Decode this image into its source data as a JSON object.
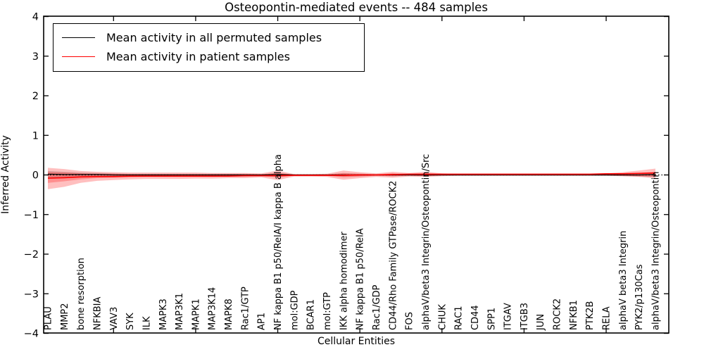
{
  "figure": {
    "title": "Osteopontin-mediated events -- 484 samples",
    "xlabel": "Cellular Entities",
    "ylabel": "Inferred Activity",
    "legend": [
      {
        "label": "Mean activity in all permuted samples",
        "color": "#000000"
      },
      {
        "label": "Mean activity in patient samples",
        "color": "#ff0000"
      }
    ]
  },
  "chart_data": {
    "type": "line",
    "title": "Osteopontin-mediated events -- 484 samples",
    "xlabel": "Cellular Entities",
    "ylabel": "Inferred Activity",
    "ylim": [
      -4,
      4
    ],
    "yticks": [
      -4,
      -3,
      -2,
      -1,
      0,
      1,
      2,
      3,
      4
    ],
    "xtick_category_indices": [
      4,
      9,
      14,
      19,
      24,
      29,
      34
    ],
    "grid": false,
    "legend_position": "upper left",
    "zero_line_style": "dotted",
    "categories": [
      "PLAU",
      "MMP2",
      "bone resorption",
      "NFKBIA",
      "VAV3",
      "SYK",
      "ILK",
      "MAPK3",
      "MAP3K1",
      "MAPK1",
      "MAP3K14",
      "MAPK8",
      "Rac1/GTP",
      "AP1",
      "NF kappa B1 p50/RelA/I kappa B alpha",
      "mol:GDP",
      "BCAR1",
      "mol:GTP",
      "IKK alpha homodimer",
      "NF kappa B1 p50/RelA",
      "Rac1/GDP",
      "CD44/Rho Family GTPase/ROCK2",
      "FOS",
      "alphaV/beta3 Integrin/Osteopontin/Src",
      "CHUK",
      "RAC1",
      "CD44",
      "SPP1",
      "ITGAV",
      "ITGB3",
      "JUN",
      "ROCK2",
      "NFKB1",
      "PTK2B",
      "RELA",
      "alphaV beta3 Integrin",
      "PYK2/p130Cas",
      "alphaV/beta3 Integrin/Osteopontin"
    ],
    "series": [
      {
        "name": "Mean activity in all permuted samples",
        "color": "#000000",
        "line_width": 1.2,
        "values": [
          0.02,
          0.01,
          0.01,
          0.01,
          0,
          0,
          0,
          0,
          0,
          0,
          0,
          0,
          0,
          0,
          0.01,
          0,
          0,
          0,
          0,
          0,
          0,
          0,
          0,
          0,
          0,
          0,
          0,
          0,
          0,
          0,
          0,
          0,
          0,
          0,
          0,
          0,
          0,
          0.01
        ],
        "band_upper": [
          0.1,
          0.08,
          0.06,
          0.05,
          0.04,
          0.03,
          0.03,
          0.03,
          0.03,
          0.03,
          0.03,
          0.03,
          0.03,
          0.02,
          0.04,
          0.02,
          0.02,
          0.02,
          0.04,
          0.03,
          0.02,
          0.03,
          0.02,
          0.03,
          0.02,
          0.02,
          0.02,
          0.02,
          0.02,
          0.02,
          0.02,
          0.02,
          0.02,
          0.02,
          0.02,
          0.03,
          0.04,
          0.06
        ],
        "band_lower": [
          -0.1,
          -0.08,
          -0.06,
          -0.05,
          -0.04,
          -0.03,
          -0.03,
          -0.03,
          -0.03,
          -0.03,
          -0.03,
          -0.03,
          -0.03,
          -0.02,
          -0.04,
          -0.02,
          -0.02,
          -0.02,
          -0.04,
          -0.03,
          -0.02,
          -0.03,
          -0.02,
          -0.03,
          -0.02,
          -0.02,
          -0.02,
          -0.02,
          -0.02,
          -0.02,
          -0.02,
          -0.02,
          -0.02,
          -0.02,
          -0.02,
          -0.03,
          -0.04,
          -0.06
        ],
        "band_color": "rgba(128,128,128,0.35)"
      },
      {
        "name": "Mean activity in patient samples",
        "color": "#ff0000",
        "line_width": 1.6,
        "values": [
          -0.08,
          -0.07,
          -0.05,
          -0.04,
          -0.04,
          -0.03,
          -0.03,
          -0.03,
          -0.03,
          -0.03,
          -0.03,
          -0.03,
          -0.02,
          -0.02,
          -0.02,
          -0.01,
          -0.01,
          -0.01,
          -0.01,
          0,
          0,
          0.01,
          0.02,
          0.02,
          0.02,
          0.02,
          0.02,
          0.02,
          0.02,
          0.02,
          0.02,
          0.02,
          0.02,
          0.02,
          0.03,
          0.03,
          0.04,
          0.05
        ],
        "band_outer_upper": [
          0.18,
          0.15,
          0.1,
          0.08,
          0.07,
          0.06,
          0.06,
          0.06,
          0.06,
          0.06,
          0.05,
          0.05,
          0.05,
          0.04,
          0.11,
          0.02,
          0.02,
          0.03,
          0.11,
          0.07,
          0.04,
          0.08,
          0.05,
          0.08,
          0.04,
          0.03,
          0.03,
          0.03,
          0.03,
          0.03,
          0.03,
          0.03,
          0.03,
          0.03,
          0.04,
          0.07,
          0.11,
          0.16
        ],
        "band_outer_lower": [
          -0.36,
          -0.3,
          -0.2,
          -0.15,
          -0.13,
          -0.11,
          -0.1,
          -0.1,
          -0.1,
          -0.09,
          -0.09,
          -0.08,
          -0.08,
          -0.06,
          -0.13,
          -0.04,
          -0.04,
          -0.05,
          -0.12,
          -0.08,
          -0.05,
          -0.07,
          -0.04,
          -0.05,
          -0.03,
          -0.02,
          -0.02,
          -0.02,
          -0.02,
          -0.02,
          -0.02,
          -0.02,
          -0.02,
          -0.02,
          -0.02,
          -0.03,
          -0.05,
          -0.08
        ],
        "band_inner_upper": [
          0.07,
          0.06,
          0.04,
          0.03,
          0.03,
          0.02,
          0.02,
          0.02,
          0.02,
          0.02,
          0.02,
          0.02,
          0.02,
          0.02,
          0.05,
          0.01,
          0.01,
          0.01,
          0.05,
          0.03,
          0.02,
          0.04,
          0.02,
          0.04,
          0.02,
          0.01,
          0.01,
          0.01,
          0.01,
          0.01,
          0.01,
          0.01,
          0.01,
          0.01,
          0.02,
          0.03,
          0.05,
          0.08
        ],
        "band_inner_lower": [
          -0.2,
          -0.16,
          -0.11,
          -0.08,
          -0.07,
          -0.06,
          -0.05,
          -0.05,
          -0.05,
          -0.05,
          -0.05,
          -0.04,
          -0.04,
          -0.03,
          -0.06,
          -0.02,
          -0.02,
          -0.02,
          -0.06,
          -0.04,
          -0.02,
          -0.03,
          -0.02,
          -0.03,
          -0.01,
          -0.01,
          -0.01,
          -0.01,
          -0.01,
          -0.01,
          -0.01,
          -0.01,
          -0.01,
          -0.01,
          -0.01,
          -0.02,
          -0.03,
          -0.04
        ],
        "band_color": "rgba(255,0,0,0.25)"
      }
    ]
  },
  "colors": {
    "axis": "#000000",
    "background": "#ffffff",
    "zero_line": "#000000"
  }
}
